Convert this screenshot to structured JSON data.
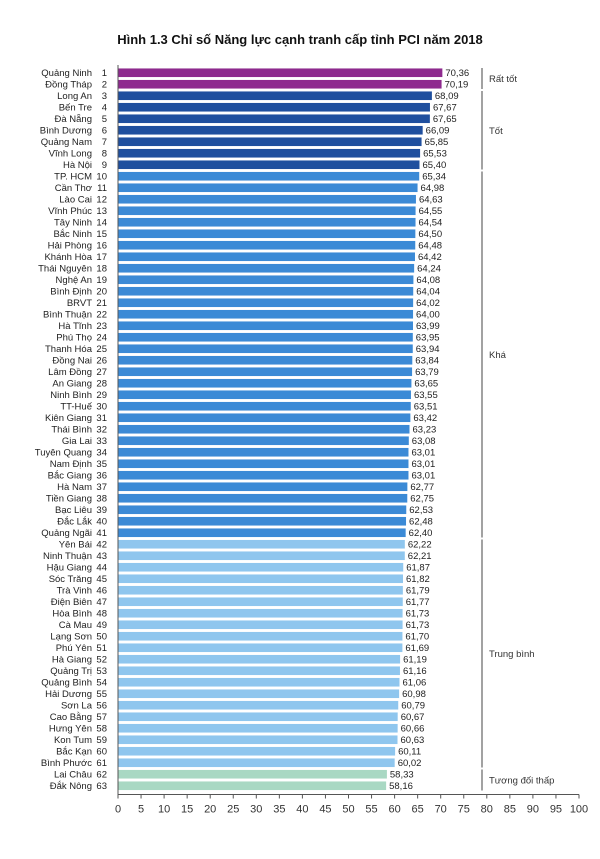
{
  "chart_data": {
    "type": "bar",
    "orientation": "horizontal",
    "title": "Hình 1.3 Chỉ số Năng lực cạnh tranh cấp tỉnh PCI năm 2018",
    "xlim": [
      0,
      100
    ],
    "xticks": [
      0,
      5,
      10,
      15,
      20,
      25,
      30,
      35,
      40,
      45,
      50,
      55,
      60,
      65,
      70,
      75,
      80,
      85,
      90,
      95,
      100
    ],
    "categories": [
      "Quảng Ninh",
      "Đồng Tháp",
      "Long An",
      "Bến Tre",
      "Đà Nẵng",
      "Bình Dương",
      "Quảng Nam",
      "Vĩnh Long",
      "Hà Nội",
      "TP. HCM",
      "Cần Thơ",
      "Lào Cai",
      "Vĩnh Phúc",
      "Tây Ninh",
      "Bắc Ninh",
      "Hải Phòng",
      "Khánh Hòa",
      "Thái Nguyên",
      "Nghệ An",
      "Bình Định",
      "BRVT",
      "Bình Thuận",
      "Hà Tĩnh",
      "Phú Thọ",
      "Thanh Hóa",
      "Đồng Nai",
      "Lâm Đồng",
      "An Giang",
      "Ninh Bình",
      "TT-Huế",
      "Kiên Giang",
      "Thái Bình",
      "Gia Lai",
      "Tuyên Quang",
      "Nam Định",
      "Bắc Giang",
      "Hà Nam",
      "Tiền Giang",
      "Bạc Liêu",
      "Đắc Lắk",
      "Quảng Ngãi",
      "Yên Bái",
      "Ninh Thuận",
      "Hậu Giang",
      "Sóc Trăng",
      "Trà Vinh",
      "Điện Biên",
      "Hòa Bình",
      "Cà Mau",
      "Lạng Sơn",
      "Phú Yên",
      "Hà Giang",
      "Quảng Trị",
      "Quảng Bình",
      "Hải Dương",
      "Sơn La",
      "Cao Bằng",
      "Hưng Yên",
      "Kon Tum",
      "Bắc Kạn",
      "Bình Phước",
      "Lai Châu",
      "Đắk Nông"
    ],
    "ranks": [
      "1",
      "2",
      "3",
      "4",
      "5",
      "6",
      "7",
      "8",
      "9",
      "10",
      "11",
      "12",
      "13",
      "14",
      "15",
      "16",
      "17",
      "18",
      "19",
      "20",
      "21",
      "22",
      "23",
      "24",
      "25",
      "26",
      "27",
      "28",
      "29",
      "30",
      "31",
      "32",
      "33",
      "34",
      "35",
      "36",
      "37",
      "38",
      "39",
      "40",
      "41",
      "42",
      "43",
      "44",
      "45",
      "46",
      "47",
      "48",
      "49",
      "50",
      "51",
      "52",
      "53",
      "54",
      "55",
      "56",
      "57",
      "58",
      "59",
      "60",
      "61",
      "62",
      "63"
    ],
    "values": [
      70.36,
      70.19,
      68.09,
      67.67,
      67.65,
      66.09,
      65.85,
      65.53,
      65.4,
      65.34,
      64.98,
      64.63,
      64.55,
      64.54,
      64.5,
      64.48,
      64.42,
      64.24,
      64.08,
      64.04,
      64.02,
      64.0,
      63.99,
      63.95,
      63.94,
      63.84,
      63.79,
      63.65,
      63.55,
      63.51,
      63.42,
      63.23,
      63.08,
      63.01,
      63.01,
      63.01,
      62.77,
      62.75,
      62.53,
      62.48,
      62.4,
      62.22,
      62.21,
      61.87,
      61.82,
      61.79,
      61.77,
      61.73,
      61.73,
      61.7,
      61.69,
      61.19,
      61.16,
      61.06,
      60.98,
      60.79,
      60.67,
      60.66,
      60.63,
      60.11,
      60.02,
      58.33,
      58.16
    ],
    "value_labels": [
      "70,36",
      "70,19",
      "68,09",
      "67,67",
      "67,65",
      "66,09",
      "65,85",
      "65,53",
      "65,40",
      "65,34",
      "64,98",
      "64,63",
      "64,55",
      "64,54",
      "64,50",
      "64,48",
      "64,42",
      "64,24",
      "64,08",
      "64,04",
      "64,02",
      "64,00",
      "63,99",
      "63,95",
      "63,94",
      "63,84",
      "63,79",
      "63,65",
      "63,55",
      "63,51",
      "63,42",
      "63,23",
      "63,08",
      "63,01",
      "63,01",
      "63,01",
      "62,77",
      "62,75",
      "62,53",
      "62,48",
      "62,40",
      "62,22",
      "62,21",
      "61,87",
      "61,82",
      "61,79",
      "61,77",
      "61,73",
      "61,73",
      "61,70",
      "61,69",
      "61,19",
      "61,16",
      "61,06",
      "60,98",
      "60,79",
      "60,67",
      "60,66",
      "60,63",
      "60,11",
      "60,02",
      "58,33",
      "58,16"
    ],
    "groups": [
      {
        "name": "Rất tốt",
        "start": 0,
        "end": 1,
        "color": "#8e2a8e"
      },
      {
        "name": "Tốt",
        "start": 2,
        "end": 8,
        "color": "#1f4f9e"
      },
      {
        "name": "Khá",
        "start": 9,
        "end": 40,
        "color": "#3b8ad6"
      },
      {
        "name": "Trung bình",
        "start": 41,
        "end": 60,
        "color": "#8fc6ee"
      },
      {
        "name": "Tương đối thấp",
        "start": 61,
        "end": 62,
        "color": "#a9d8c3"
      }
    ]
  }
}
